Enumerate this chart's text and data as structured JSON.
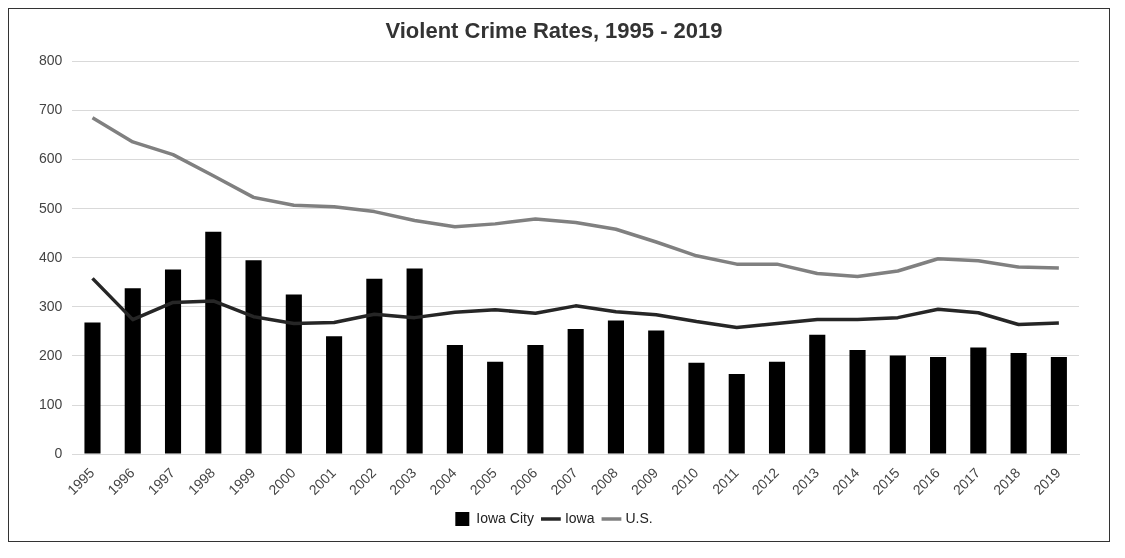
{
  "chart_data": {
    "type": "bar",
    "title": "Violent Crime Rates, 1995 - 2019",
    "categories": [
      "1995",
      "1996",
      "1997",
      "1998",
      "1999",
      "2000",
      "2001",
      "2002",
      "2003",
      "2004",
      "2005",
      "2006",
      "2007",
      "2008",
      "2009",
      "2010",
      "2011",
      "2012",
      "2013",
      "2014",
      "2015",
      "2016",
      "2017",
      "2018",
      "2019"
    ],
    "series": [
      {
        "name": "Iowa City",
        "color": "#000000",
        "values": [
          268,
          338,
          376,
          453,
          395,
          325,
          240,
          357,
          378,
          222,
          188,
          222,
          255,
          272,
          252,
          186,
          163,
          188,
          243,
          212,
          201,
          198,
          217,
          206,
          198
        ]
      },
      {
        "name": "Iowa",
        "type": "line",
        "color": "#262626",
        "values": [
          358,
          274,
          309,
          312,
          280,
          266,
          268,
          285,
          278,
          289,
          294,
          287,
          302,
          290,
          284,
          270,
          258,
          266,
          274,
          274,
          278,
          295,
          288,
          264,
          267
        ]
      },
      {
        "name": "U.S.",
        "type": "line",
        "color": "#808080",
        "values": [
          685,
          636,
          610,
          567,
          523,
          507,
          504,
          494,
          476,
          463,
          469,
          479,
          472,
          458,
          432,
          404,
          387,
          387,
          368,
          362,
          373,
          398,
          394,
          381,
          379
        ]
      }
    ],
    "ylim": [
      0,
      800
    ],
    "yticks": [
      0,
      100,
      200,
      300,
      400,
      500,
      600,
      700,
      800
    ],
    "grid": "y",
    "legend": "bottom",
    "marker": "none",
    "line_style": "solid"
  }
}
